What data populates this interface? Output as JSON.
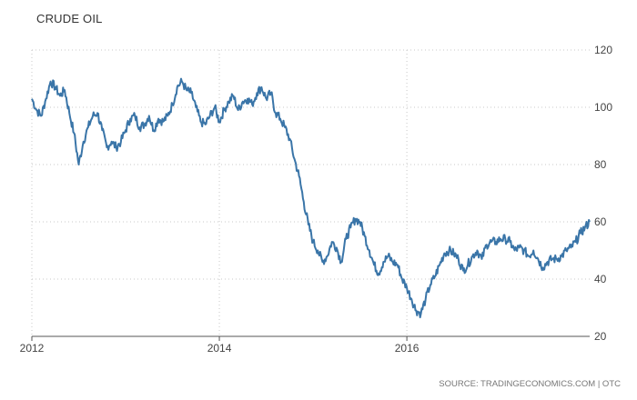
{
  "chart_data": {
    "type": "line",
    "title": "CRUDE OIL",
    "source": "SOURCE: TRADINGECONOMICS.COM | OTC",
    "xlabel": "",
    "ylabel": "",
    "x_tick_labels": [
      "2012",
      "2014",
      "2016"
    ],
    "x_tick_values": [
      2012,
      2014,
      2016
    ],
    "y_ticks": [
      20,
      40,
      60,
      80,
      100,
      120
    ],
    "xlim": [
      2012,
      2017.95
    ],
    "ylim": [
      20,
      120
    ],
    "y_axis_position": "right",
    "grid": "dotted vertical and horizontal",
    "line_color": "#3a75a8",
    "series": [
      {
        "x": [
          2012.0,
          2012.05,
          2012.1,
          2012.15,
          2012.2,
          2012.25,
          2012.3,
          2012.35,
          2012.4,
          2012.45,
          2012.5,
          2012.55,
          2012.6,
          2012.65,
          2012.7,
          2012.75,
          2012.8,
          2012.85,
          2012.9,
          2012.95,
          2013.0,
          2013.05,
          2013.1,
          2013.15,
          2013.2,
          2013.25,
          2013.3,
          2013.35,
          2013.4,
          2013.45,
          2013.5,
          2013.55,
          2013.6,
          2013.65,
          2013.7,
          2013.75,
          2013.8,
          2013.85,
          2013.9,
          2013.95,
          2014.0,
          2014.05,
          2014.1,
          2014.15,
          2014.2,
          2014.25,
          2014.3,
          2014.35,
          2014.4,
          2014.45,
          2014.5,
          2014.55,
          2014.6,
          2014.65,
          2014.7,
          2014.75,
          2014.8,
          2014.85,
          2014.9,
          2014.95,
          2015.0,
          2015.05,
          2015.1,
          2015.15,
          2015.2,
          2015.25,
          2015.3,
          2015.35,
          2015.4,
          2015.45,
          2015.5,
          2015.55,
          2015.6,
          2015.65,
          2015.7,
          2015.75,
          2015.8,
          2015.85,
          2015.9,
          2015.95,
          2016.0,
          2016.05,
          2016.1,
          2016.15,
          2016.2,
          2016.25,
          2016.3,
          2016.35,
          2016.4,
          2016.45,
          2016.5,
          2016.55,
          2016.6,
          2016.65,
          2016.7,
          2016.75,
          2016.8,
          2016.85,
          2016.9,
          2016.95,
          2017.0,
          2017.05,
          2017.1,
          2017.15,
          2017.2,
          2017.25,
          2017.3,
          2017.35,
          2017.4,
          2017.45,
          2017.5,
          2017.55,
          2017.6,
          2017.65,
          2017.7,
          2017.75,
          2017.8,
          2017.85,
          2017.9,
          2017.95
        ],
        "y": [
          103,
          99,
          97,
          103,
          109,
          107,
          104,
          106,
          98,
          91,
          80,
          88,
          93,
          97,
          98,
          92,
          86,
          88,
          86,
          88,
          92,
          96,
          97,
          93,
          94,
          97,
          92,
          96,
          95,
          97,
          101,
          107,
          109,
          106,
          105,
          100,
          95,
          94,
          97,
          100,
          95,
          99,
          102,
          104,
          99,
          102,
          103,
          101,
          105,
          107,
          103,
          105,
          98,
          96,
          93,
          89,
          82,
          76,
          67,
          59,
          53,
          50,
          46,
          48,
          53,
          51,
          46,
          54,
          58,
          61,
          60,
          55,
          50,
          45,
          42,
          46,
          48,
          46,
          45,
          40,
          37,
          33,
          29,
          28,
          33,
          38,
          41,
          45,
          49,
          50,
          49,
          47,
          43,
          45,
          48,
          50,
          47,
          52,
          53,
          53,
          54,
          54,
          53,
          50,
          51,
          50,
          48,
          50,
          47,
          44,
          46,
          47,
          47,
          48,
          50,
          51,
          53,
          56,
          58,
          60
        ]
      }
    ]
  }
}
